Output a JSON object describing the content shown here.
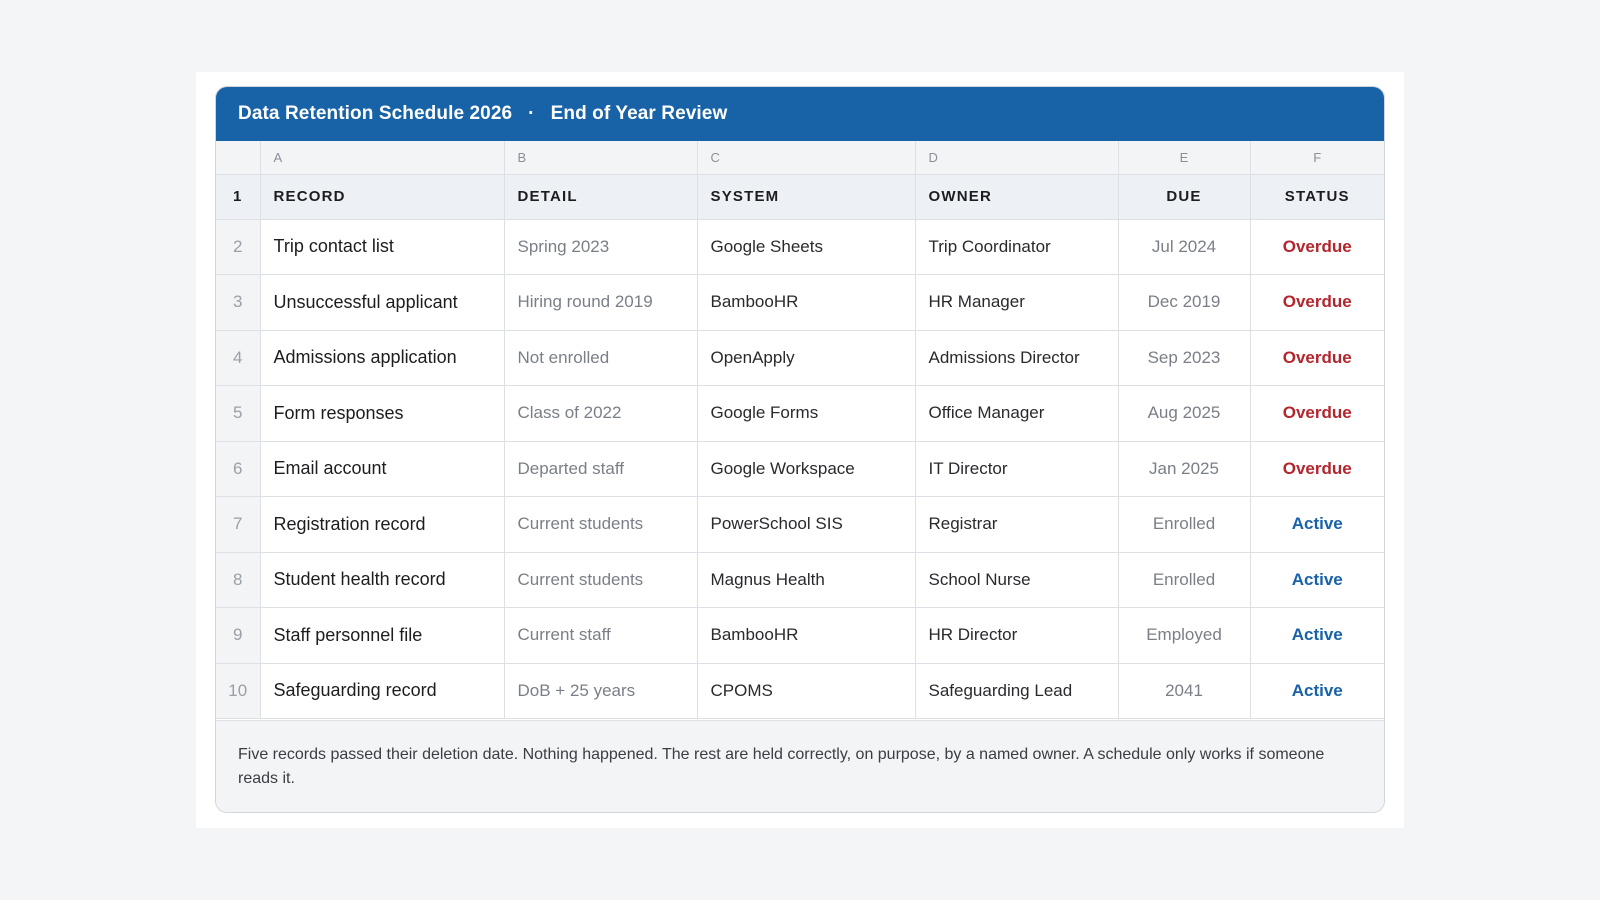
{
  "sheet": {
    "title": "Data Retention Schedule 2026",
    "separator": "·",
    "subtitle": "End of Year Review",
    "column_letters": [
      "A",
      "B",
      "C",
      "D",
      "E",
      "F"
    ],
    "headers": {
      "row_number": "1",
      "record": "RECORD",
      "detail": "DETAIL",
      "system": "SYSTEM",
      "owner": "OWNER",
      "due": "DUE",
      "status": "STATUS"
    },
    "rows": [
      {
        "n": "2",
        "record": "Trip contact list",
        "detail": "Spring 2023",
        "system": "Google Sheets",
        "owner": "Trip Coordinator",
        "due": "Jul 2024",
        "status": "Overdue"
      },
      {
        "n": "3",
        "record": "Unsuccessful applicant",
        "detail": "Hiring round 2019",
        "system": "BambooHR",
        "owner": "HR Manager",
        "due": "Dec 2019",
        "status": "Overdue"
      },
      {
        "n": "4",
        "record": "Admissions application",
        "detail": "Not enrolled",
        "system": "OpenApply",
        "owner": "Admissions Director",
        "due": "Sep 2023",
        "status": "Overdue"
      },
      {
        "n": "5",
        "record": "Form responses",
        "detail": "Class of 2022",
        "system": "Google Forms",
        "owner": "Office Manager",
        "due": "Aug 2025",
        "status": "Overdue"
      },
      {
        "n": "6",
        "record": "Email account",
        "detail": "Departed staff",
        "system": "Google Workspace",
        "owner": "IT Director",
        "due": "Jan 2025",
        "status": "Overdue"
      },
      {
        "n": "7",
        "record": "Registration record",
        "detail": "Current students",
        "system": "PowerSchool SIS",
        "owner": "Registrar",
        "due": "Enrolled",
        "status": "Active"
      },
      {
        "n": "8",
        "record": "Student health record",
        "detail": "Current students",
        "system": "Magnus Health",
        "owner": "School Nurse",
        "due": "Enrolled",
        "status": "Active"
      },
      {
        "n": "9",
        "record": "Staff personnel file",
        "detail": "Current staff",
        "system": "BambooHR",
        "owner": "HR Director",
        "due": "Employed",
        "status": "Active"
      },
      {
        "n": "10",
        "record": "Safeguarding record",
        "detail": "DoB + 25 years",
        "system": "CPOMS",
        "owner": "Safeguarding Lead",
        "due": "2041",
        "status": "Active"
      }
    ],
    "footer_note": "Five records passed their deletion date. Nothing happened. The rest are held correctly, on purpose, by a named owner. A schedule only works if someone reads it."
  },
  "colors": {
    "title_bar": "#1862a8",
    "overdue": "#b3262d",
    "active": "#1862a8",
    "page_background": "#f4f5f7"
  }
}
